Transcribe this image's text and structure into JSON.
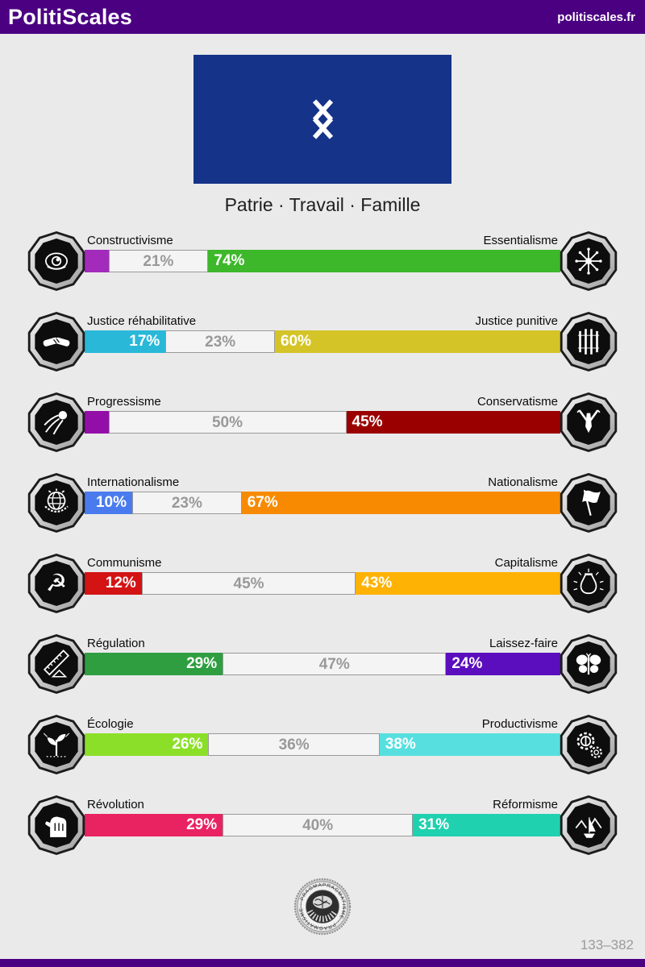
{
  "header": {
    "title": "PolitiScales",
    "site": "politiscales.fr"
  },
  "flag": {
    "color": "#143389",
    "symbol": "double-cross-rune-icon"
  },
  "motto": "Patrie · Travail · Famille",
  "chart_data": {
    "type": "bar",
    "note": "8 opposing political axes, each bar = left% / neutral% / right% of 100",
    "axes": [
      {
        "left_label": "Constructivisme",
        "right_label": "Essentialisme",
        "left": {
          "pct": 5,
          "text": "",
          "color": "#A22BBB"
        },
        "mid": {
          "pct": 21,
          "text": "21%"
        },
        "right": {
          "pct": 74,
          "text": "74%",
          "color": "#3DB82B"
        },
        "left_icon": "eye-icon",
        "right_icon": "flower-icon"
      },
      {
        "left_label": "Justice réhabilitative",
        "right_label": "Justice punitive",
        "left": {
          "pct": 17,
          "text": "17%",
          "color": "#29B8D8"
        },
        "mid": {
          "pct": 23,
          "text": "23%"
        },
        "right": {
          "pct": 60,
          "text": "60%",
          "color": "#D4C428"
        },
        "left_icon": "handshake-icon",
        "right_icon": "prison-bars-icon"
      },
      {
        "left_label": "Progressisme",
        "right_label": "Conservatisme",
        "left": {
          "pct": 5,
          "text": "",
          "color": "#930EA9"
        },
        "mid": {
          "pct": 50,
          "text": "50%"
        },
        "right": {
          "pct": 45,
          "text": "45%",
          "color": "#9B0000"
        },
        "left_icon": "comet-icon",
        "right_icon": "suit-tie-icon"
      },
      {
        "left_label": "Internationalisme",
        "right_label": "Nationalisme",
        "left": {
          "pct": 10,
          "text": "10%",
          "color": "#4A7BEE"
        },
        "mid": {
          "pct": 23,
          "text": "23%"
        },
        "right": {
          "pct": 67,
          "text": "67%",
          "color": "#F78A00"
        },
        "left_icon": "globe-icon",
        "right_icon": "flag-icon"
      },
      {
        "left_label": "Communisme",
        "right_label": "Capitalisme",
        "left": {
          "pct": 12,
          "text": "12%",
          "color": "#D31314"
        },
        "mid": {
          "pct": 45,
          "text": "45%"
        },
        "right": {
          "pct": 43,
          "text": "43%",
          "color": "#FEB204"
        },
        "left_icon": "hammer-sickle-icon",
        "right_icon": "money-bag-icon"
      },
      {
        "left_label": "Régulation",
        "right_label": "Laissez-faire",
        "left": {
          "pct": 29,
          "text": "29%",
          "color": "#2F9E41"
        },
        "mid": {
          "pct": 47,
          "text": "47%"
        },
        "right": {
          "pct": 24,
          "text": "24%",
          "color": "#5B0EBE"
        },
        "left_icon": "ruler-icon",
        "right_icon": "butterfly-icon"
      },
      {
        "left_label": "Écologie",
        "right_label": "Productivisme",
        "left": {
          "pct": 26,
          "text": "26%",
          "color": "#8CDF29"
        },
        "mid": {
          "pct": 36,
          "text": "36%"
        },
        "right": {
          "pct": 38,
          "text": "38%",
          "color": "#57DFDF"
        },
        "left_icon": "seedling-icon",
        "right_icon": "gears-icon"
      },
      {
        "left_label": "Révolution",
        "right_label": "Réformisme",
        "left": {
          "pct": 29,
          "text": "29%",
          "color": "#E92362"
        },
        "mid": {
          "pct": 40,
          "text": "40%"
        },
        "right": {
          "pct": 31,
          "text": "31%",
          "color": "#1FD1AF"
        },
        "left_icon": "fist-icon",
        "right_icon": "sailboat-icon"
      }
    ]
  },
  "seal": {
    "rim_text": "PRAGMATISME · PRAGMATISME · PRAGMATISME"
  },
  "footer": {
    "result_id": "133–382"
  },
  "colors": {
    "header_bg": "#4B0082",
    "page_bg": "#EAEAEA",
    "neutral_bg": "#F4F4F4",
    "neutral_border": "#999999",
    "neutral_text": "#999999"
  }
}
